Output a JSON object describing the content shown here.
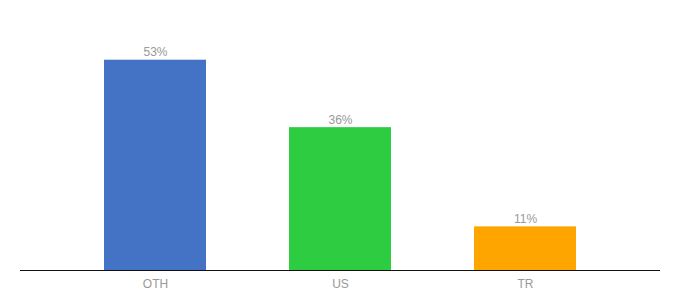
{
  "chart_data": {
    "type": "bar",
    "categories": [
      "OTH",
      "US",
      "TR"
    ],
    "values": [
      53,
      36,
      11
    ],
    "value_labels": [
      "53%",
      "36%",
      "11%"
    ],
    "colors": [
      "#4472C4",
      "#2ECC40",
      "#FFA500"
    ],
    "ylim": [
      0,
      62
    ],
    "data_labels": true,
    "tick_labels": "x",
    "grid": false
  }
}
